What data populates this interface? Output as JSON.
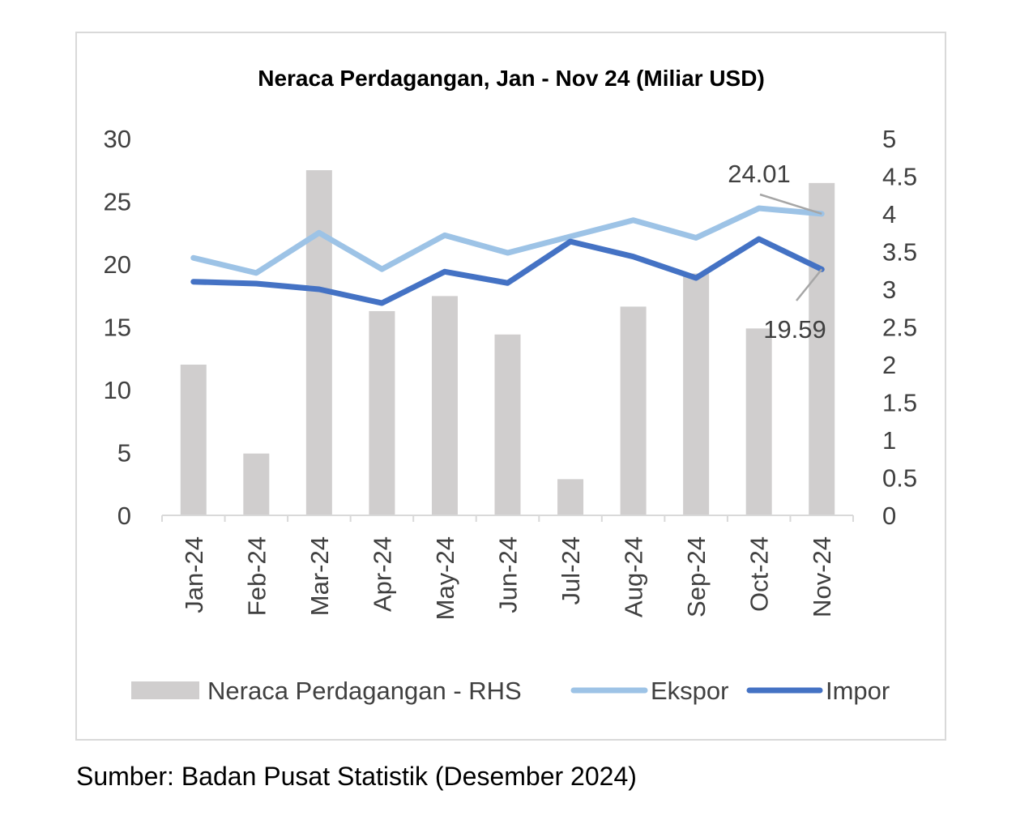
{
  "chart_data": {
    "type": "bar+line",
    "title": "Neraca Perdagangan, Jan - Nov 24 (Miliar USD)",
    "categories": [
      "Jan-24",
      "Feb-24",
      "Mar-24",
      "Apr-24",
      "May-24",
      "Jun-24",
      "Jul-24",
      "Aug-24",
      "Sep-24",
      "Oct-24",
      "Nov-24"
    ],
    "left_axis": {
      "range": [
        0,
        30
      ],
      "ticks": [
        "0",
        "5",
        "10",
        "15",
        "20",
        "25",
        "30"
      ]
    },
    "right_axis": {
      "range": [
        0,
        5
      ],
      "ticks": [
        "0",
        "0.5",
        "1",
        "1.5",
        "2",
        "2.5",
        "3",
        "3.5",
        "4",
        "4.5",
        "5"
      ]
    },
    "grid": false,
    "legend_position": "bottom",
    "series": [
      {
        "name": "Neraca Perdagangan  - RHS",
        "type": "bar",
        "axis": "right",
        "color": "#d0cece",
        "values": [
          2.0,
          0.82,
          4.58,
          2.71,
          2.91,
          2.4,
          0.48,
          2.77,
          3.21,
          2.48,
          4.41
        ]
      },
      {
        "name": "Ekspor",
        "type": "line",
        "axis": "left",
        "color": "#9dc3e6",
        "values": [
          20.5,
          19.3,
          22.5,
          19.6,
          22.3,
          20.9,
          22.2,
          23.5,
          22.1,
          24.45,
          24.01
        ]
      },
      {
        "name": "Impor",
        "type": "line",
        "axis": "left",
        "color": "#4472c4",
        "values": [
          18.6,
          18.45,
          18.0,
          16.9,
          19.4,
          18.5,
          21.8,
          20.6,
          18.9,
          22.0,
          19.59
        ]
      }
    ],
    "annotations": [
      {
        "series": "Ekspor",
        "category": "Nov-24",
        "text": "24.01"
      },
      {
        "series": "Impor",
        "category": "Nov-24",
        "text": "19.59"
      }
    ]
  },
  "source": "Sumber: Badan Pusat Statistik (Desember 2024)"
}
